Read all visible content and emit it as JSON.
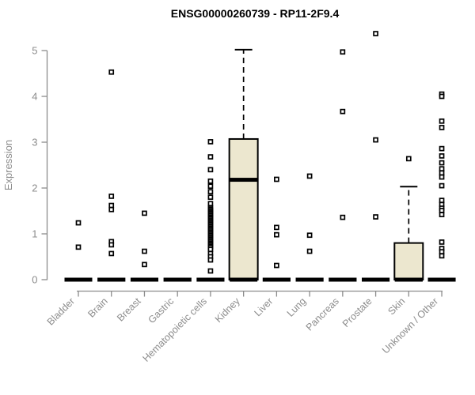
{
  "chart_data": {
    "type": "boxplot",
    "title": "ENSG00000260739 - RP11-2F9.4",
    "ylabel": "Expression",
    "ylim": [
      0,
      5.5
    ],
    "yticks": [
      0,
      1,
      2,
      3,
      4,
      5
    ],
    "grid": false,
    "legend": "none",
    "categories": [
      "Bladder",
      "Brain",
      "Breast",
      "Gastric",
      "Hematopoietic cells",
      "Kidney",
      "Liver",
      "Lung",
      "Pancreas",
      "Prostate",
      "Skin",
      "Unknown / Other"
    ],
    "series": [
      {
        "category": "Bladder",
        "q1": 0,
        "median": 0,
        "q3": 0,
        "whisker_low": 0,
        "whisker_high": 0,
        "outliers": [
          1.24,
          0.71
        ]
      },
      {
        "category": "Brain",
        "q1": 0,
        "median": 0,
        "q3": 0,
        "whisker_low": 0,
        "whisker_high": 0,
        "outliers": [
          4.53,
          1.82,
          1.62,
          1.53,
          0.83,
          0.76,
          0.57
        ]
      },
      {
        "category": "Breast",
        "q1": 0,
        "median": 0,
        "q3": 0,
        "whisker_low": 0,
        "whisker_high": 0,
        "outliers": [
          1.45,
          0.62,
          0.33
        ]
      },
      {
        "category": "Gastric",
        "q1": 0,
        "median": 0,
        "q3": 0,
        "whisker_low": 0,
        "whisker_high": 0,
        "outliers": []
      },
      {
        "category": "Hematopoietic cells",
        "q1": 0,
        "median": 0,
        "q3": 0,
        "whisker_low": 0,
        "whisker_high": 0,
        "outliers": [
          3.01,
          2.68,
          2.4,
          2.15,
          2.04,
          1.92,
          1.8,
          1.66,
          1.57,
          1.54,
          1.51,
          1.48,
          1.45,
          1.42,
          1.39,
          1.36,
          1.33,
          1.3,
          1.27,
          1.24,
          1.21,
          1.18,
          1.15,
          1.12,
          1.09,
          1.06,
          1.03,
          1.0,
          0.97,
          0.94,
          0.91,
          0.88,
          0.85,
          0.82,
          0.79,
          0.76,
          0.73,
          0.7,
          0.66,
          0.57,
          0.5,
          0.43,
          0.19
        ]
      },
      {
        "category": "Kidney",
        "q1": 0,
        "median": 2.18,
        "q3": 3.07,
        "whisker_low": 0,
        "whisker_high": 5.02,
        "outliers": []
      },
      {
        "category": "Liver",
        "q1": 0,
        "median": 0,
        "q3": 0,
        "whisker_low": 0,
        "whisker_high": 0,
        "outliers": [
          2.19,
          1.14,
          0.98,
          0.31
        ]
      },
      {
        "category": "Lung",
        "q1": 0,
        "median": 0,
        "q3": 0,
        "whisker_low": 0,
        "whisker_high": 0,
        "outliers": [
          2.26,
          0.97,
          0.62
        ]
      },
      {
        "category": "Pancreas",
        "q1": 0,
        "median": 0,
        "q3": 0,
        "whisker_low": 0,
        "whisker_high": 0,
        "outliers": [
          4.97,
          3.67,
          1.36
        ]
      },
      {
        "category": "Prostate",
        "q1": 0,
        "median": 0,
        "q3": 0,
        "whisker_low": 0,
        "whisker_high": 0,
        "outliers": [
          5.37,
          3.05,
          1.37
        ]
      },
      {
        "category": "Skin",
        "q1": 0,
        "median": 0,
        "q3": 0.8,
        "whisker_low": 0,
        "whisker_high": 2.03,
        "outliers": [
          2.64
        ]
      },
      {
        "category": "Unknown / Other",
        "q1": 0,
        "median": 0,
        "q3": 0,
        "whisker_low": 0,
        "whisker_high": 0,
        "outliers": [
          4.05,
          4.0,
          3.46,
          3.32,
          2.86,
          2.7,
          2.55,
          2.42,
          2.33,
          2.24,
          2.05,
          1.73,
          1.64,
          1.56,
          1.51,
          1.42,
          0.82,
          0.68,
          0.61,
          0.52
        ]
      }
    ],
    "colors": {
      "box_fill": "#ece7cf",
      "box_border": "#000000",
      "median": "#000000",
      "outlier_stroke": "#000000",
      "outlier_fill": "#ffffff",
      "axis": "#8c8c8c",
      "tick_text": "#8c8c8c",
      "title": "#000000",
      "background": "#ffffff"
    }
  }
}
